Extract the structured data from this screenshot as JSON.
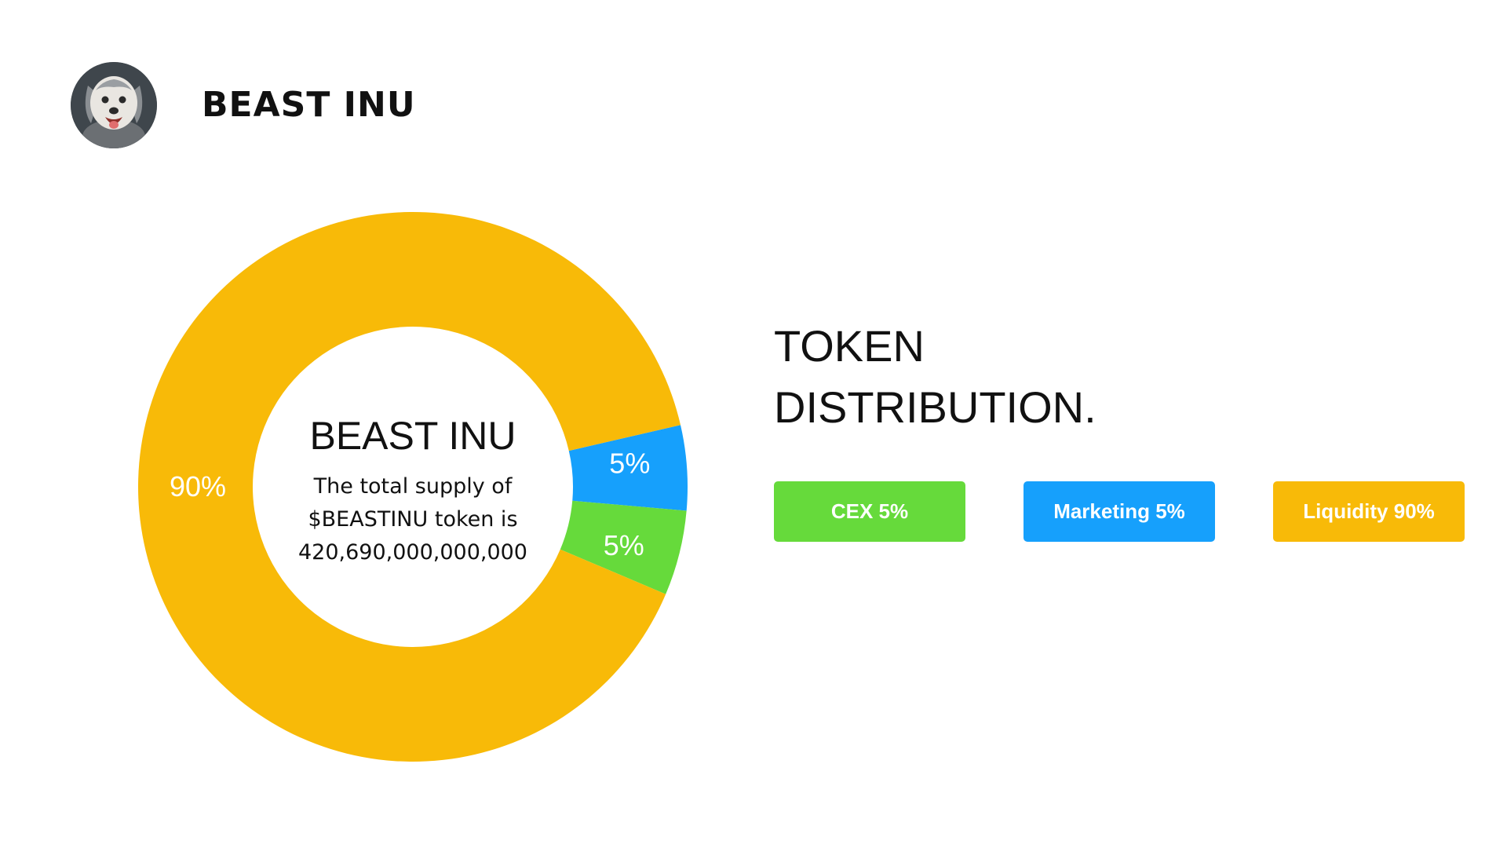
{
  "header": {
    "brand_name": "BEAST INU",
    "avatar_icon": "dog-avatar-icon"
  },
  "heading": {
    "line1": "TOKEN",
    "line2": "DISTRIBUTION."
  },
  "legend": {
    "items": [
      {
        "label": "CEX 5%",
        "color": "#66DA3B"
      },
      {
        "label": "Marketing 5%",
        "color": "#16A0FC"
      },
      {
        "label": "Liquidity 90%",
        "color": "#F8BA08"
      }
    ]
  },
  "chart_data": {
    "type": "pie",
    "variant": "donut",
    "categories": [
      "Marketing",
      "CEX",
      "Liquidity"
    ],
    "values": [
      5,
      5,
      90
    ],
    "colors": [
      "#16A0FC",
      "#66DA3B",
      "#F8BA08"
    ],
    "labels": [
      "5%",
      "5%",
      "90%"
    ],
    "center": {
      "title": "BEAST INU",
      "lines": [
        "The total supply of",
        "$BEASTINU token is",
        "420,690,000,000,000"
      ]
    },
    "legend_position": "right"
  }
}
